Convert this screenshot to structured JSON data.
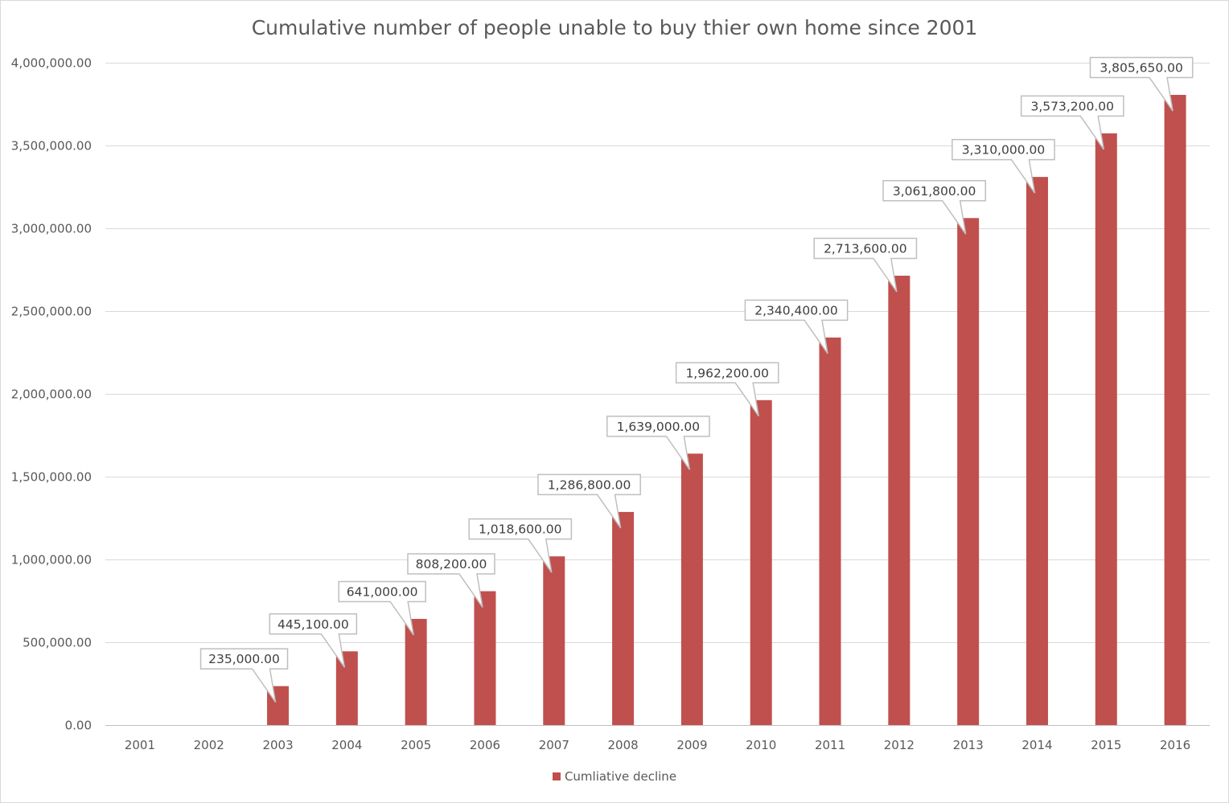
{
  "chart_data": {
    "type": "bar",
    "title": "Cumulative number of people unable to buy thier own home since 2001",
    "categories": [
      "2001",
      "2002",
      "2003",
      "2004",
      "2005",
      "2006",
      "2007",
      "2008",
      "2009",
      "2010",
      "2011",
      "2012",
      "2013",
      "2014",
      "2015",
      "2016"
    ],
    "series": [
      {
        "name": "Cumliative decline",
        "values": [
          0,
          0,
          235000,
          445100,
          641000,
          808200,
          1018600,
          1286800,
          1639000,
          1962200,
          2340400,
          2713600,
          3061800,
          3310000,
          3573200,
          3805650
        ],
        "data_labels": [
          null,
          null,
          "235,000.00",
          "445,100.00",
          "641,000.00",
          "808,200.00",
          "1,018,600.00",
          "1,286,800.00",
          "1,639,000.00",
          "1,962,200.00",
          "2,340,400.00",
          "2,713,600.00",
          "3,061,800.00",
          "3,310,000.00",
          "3,573,200.00",
          "3,805,650.00"
        ],
        "color": "#c0504d"
      }
    ],
    "ylim": [
      0,
      4000000
    ],
    "yticks": [
      0,
      500000,
      1000000,
      1500000,
      2000000,
      2500000,
      3000000,
      3500000,
      4000000
    ],
    "ytick_labels": [
      "0.00",
      "500,000.00",
      "1,000,000.00",
      "1,500,000.00",
      "2,000,000.00",
      "2,500,000.00",
      "3,000,000.00",
      "3,500,000.00",
      "4,000,000.00"
    ],
    "xlabel": "",
    "ylabel": "",
    "grid": true,
    "legend_position": "bottom"
  }
}
